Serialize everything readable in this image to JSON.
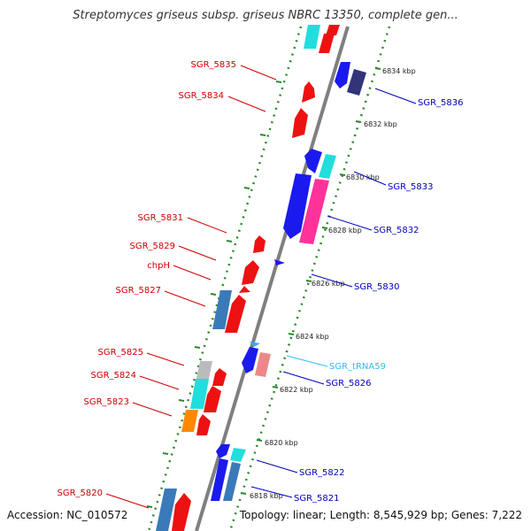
{
  "title": "Streptomyces griseus subsp. griseus NBRC 13350, complete gen...",
  "footer": {
    "accession": "Accession: NC_010572",
    "topology": "Topology: linear; Length: 8,545,929 bp; Genes: 7,222"
  },
  "colors": {
    "axis": "#7f7f7f",
    "ruler_dots": "#2a8a2a",
    "forward_label": "#cc0000",
    "reverse_label": "#0000bb",
    "trna_label": "#33bbee",
    "red_gene": "#ee1111",
    "blue_gene": "#1a1aee",
    "cyan_gene": "#22dddd",
    "steel_gene": "#3a7ab8",
    "navy_gene": "#33337a",
    "pink_gene": "#ff3399",
    "salmon_gene": "#ee8888",
    "grey_gene": "#bbbbbb",
    "orange_gene": "#ff8800",
    "trna_gene": "#33aaee"
  },
  "ticks": [
    "6834 kbp",
    "6832 kbp",
    "6830 kbp",
    "6828 kbp",
    "6826 kbp",
    "6824 kbp",
    "6822 kbp",
    "6820 kbp",
    "6818 kbp"
  ],
  "left_labels": [
    "SGR_5835",
    "SGR_5834",
    "SGR_5831",
    "SGR_5829",
    "chpH",
    "SGR_5827",
    "SGR_5825",
    "SGR_5824",
    "SGR_5823",
    "SGR_5820"
  ],
  "right_labels": [
    "SGR_5836",
    "SGR_5833",
    "SGR_5832",
    "SGR_5830",
    "SGR_tRNA59",
    "SGR_5826",
    "SGR_5822",
    "SGR_5821"
  ]
}
